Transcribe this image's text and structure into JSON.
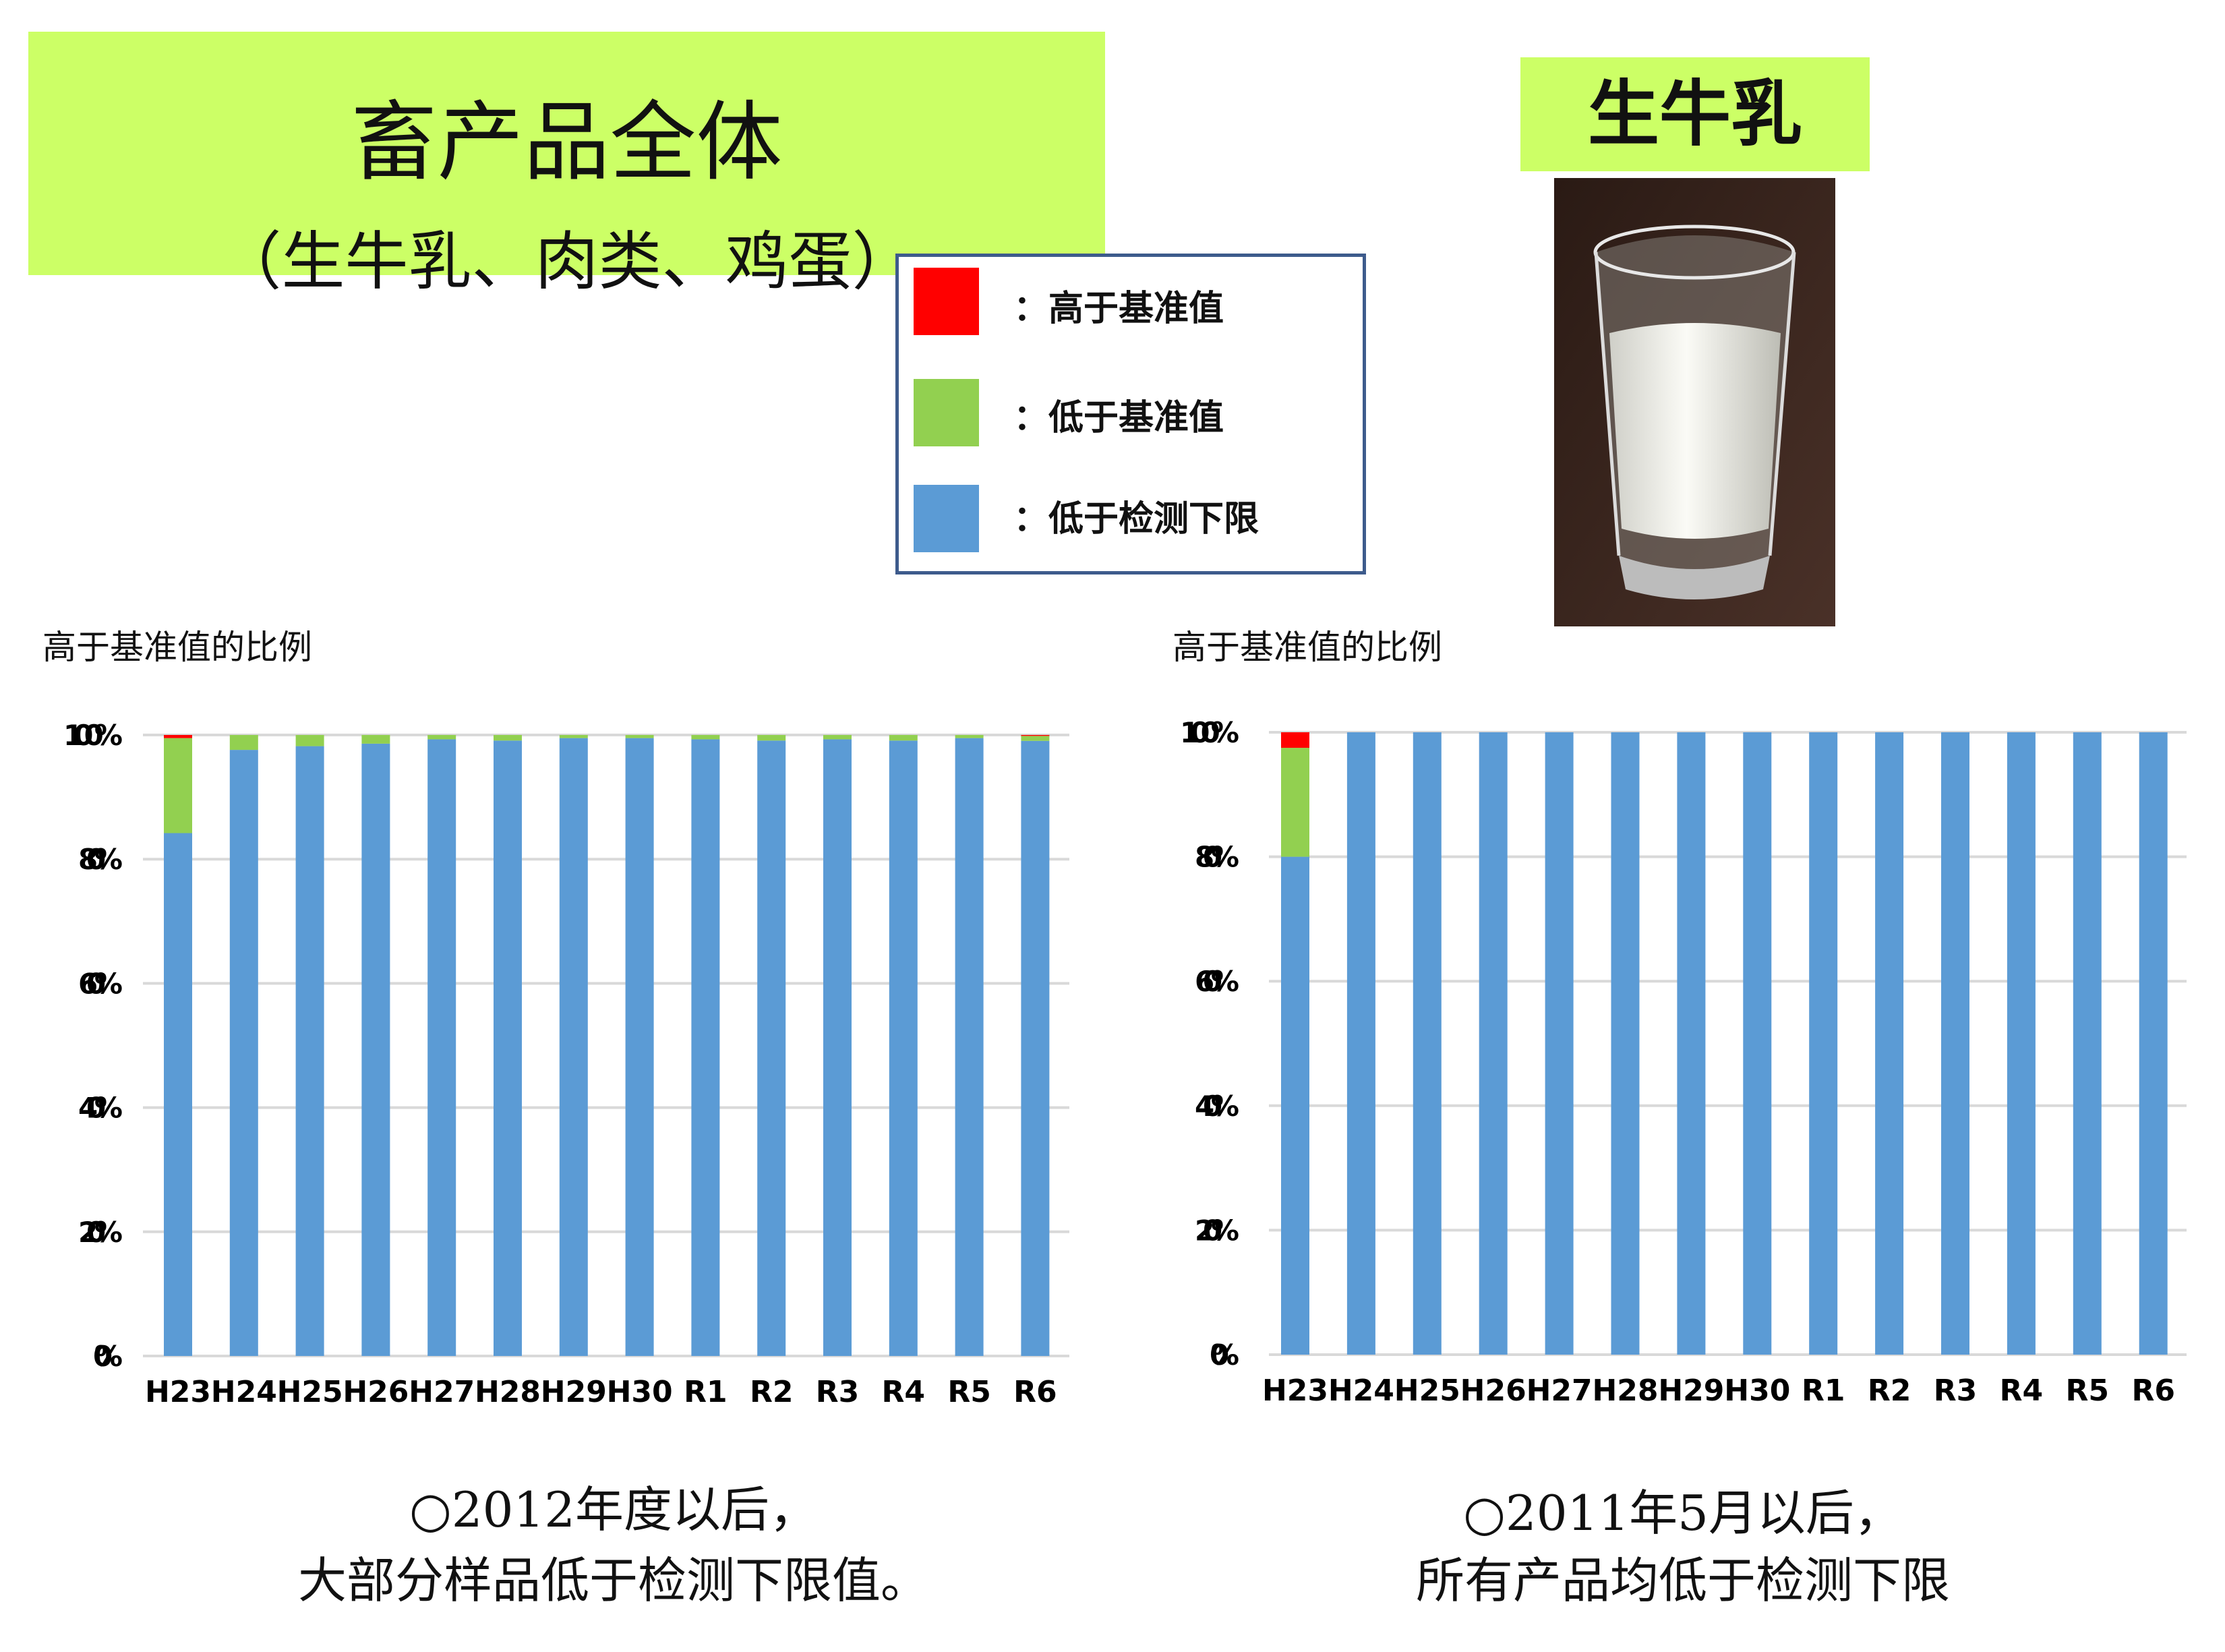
{
  "header": {
    "title": "畜产品全体",
    "subtitle": "（生牛乳、肉类、鸡蛋）",
    "milk_title": "生牛乳"
  },
  "legend": {
    "items": [
      {
        "label": "：高于基准值",
        "color": "#ff0000"
      },
      {
        "label": "：低于基准值",
        "color": "#92d050"
      },
      {
        "label": "：低于检测下限",
        "color": "#5b9bd5"
      }
    ]
  },
  "notes": {
    "left_line1": "○2012年度以后，",
    "left_line2": "大部分样品低于检测下限值。",
    "right_line1": "○2011年5月以后，",
    "right_line2": "所有产品均低于检测下限"
  },
  "chart_data": [
    {
      "type": "bar",
      "stacked": true,
      "title": "高于基准值的比例",
      "categories": [
        "H23",
        "H24",
        "H25",
        "H26",
        "H27",
        "H28",
        "H29",
        "H30",
        "R1",
        "R2",
        "R3",
        "R4",
        "R5",
        "R6"
      ],
      "yticks": [
        "0%",
        "20%",
        "40%",
        "60%",
        "80%",
        "100%"
      ],
      "ylim": [
        0,
        100
      ],
      "grid": true,
      "series": [
        {
          "name": "低于检测下限",
          "color": "#5b9bd5",
          "values": [
            84.2,
            97.6,
            98.2,
            98.6,
            99.3,
            99.1,
            99.5,
            99.5,
            99.3,
            99.1,
            99.3,
            99.1,
            99.5,
            99.05
          ]
        },
        {
          "name": "低于基准值",
          "color": "#92d050",
          "values": [
            15.3,
            2.4,
            1.8,
            1.4,
            0.7,
            0.9,
            0.5,
            0.5,
            0.7,
            0.9,
            0.7,
            0.9,
            0.5,
            0.8
          ]
        },
        {
          "name": "高于基准值",
          "color": "#ff0000",
          "values": [
            0.5,
            0,
            0,
            0,
            0,
            0,
            0,
            0,
            0,
            0,
            0,
            0,
            0,
            0.15
          ]
        }
      ]
    },
    {
      "type": "bar",
      "stacked": true,
      "title": "高于基准值的比例",
      "categories": [
        "H23",
        "H24",
        "H25",
        "H26",
        "H27",
        "H28",
        "H29",
        "H30",
        "R1",
        "R2",
        "R3",
        "R4",
        "R5",
        "R6"
      ],
      "yticks": [
        "0%",
        "20%",
        "40%",
        "60%",
        "80%",
        "100%"
      ],
      "ylim": [
        0,
        100
      ],
      "grid": true,
      "series": [
        {
          "name": "低于检测下限",
          "color": "#5b9bd5",
          "values": [
            80,
            100,
            100,
            100,
            100,
            100,
            100,
            100,
            100,
            100,
            100,
            100,
            100,
            100
          ]
        },
        {
          "name": "低于基准值",
          "color": "#92d050",
          "values": [
            17.5,
            0,
            0,
            0,
            0,
            0,
            0,
            0,
            0,
            0,
            0,
            0,
            0,
            0
          ]
        },
        {
          "name": "高于基准值",
          "color": "#ff0000",
          "values": [
            2.5,
            0,
            0,
            0,
            0,
            0,
            0,
            0,
            0,
            0,
            0,
            0,
            0,
            0
          ]
        }
      ]
    }
  ]
}
